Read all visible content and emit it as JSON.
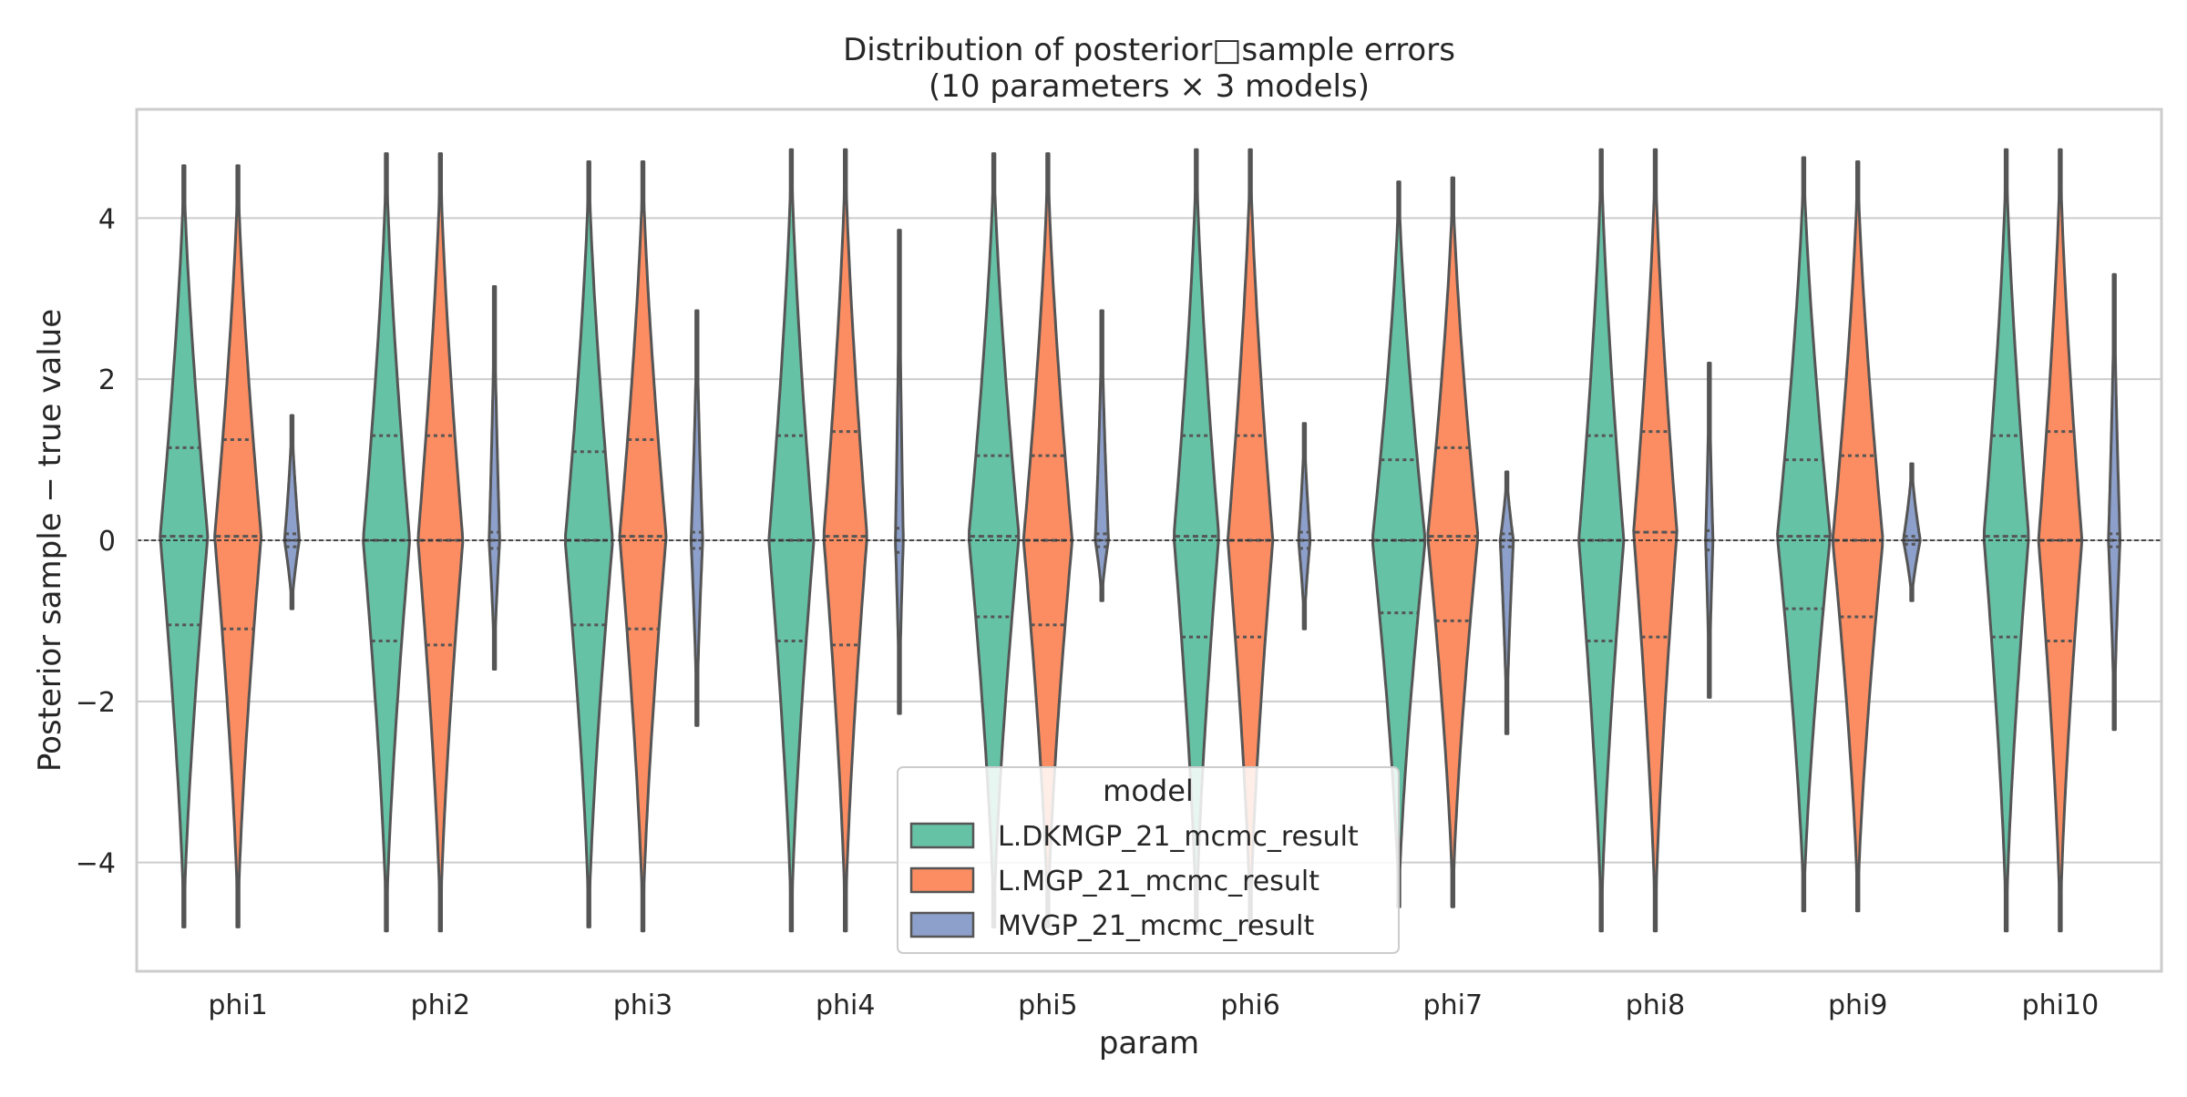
{
  "chart_data": {
    "type": "violin",
    "title_line1": "Distribution of posterior□sample errors",
    "title_line2": "(10 parameters × 3 models)",
    "xlabel": "param",
    "ylabel": "Posterior sample − true value",
    "ylim": [
      -5.35,
      5.35
    ],
    "yticks": [
      -4,
      -2,
      0,
      2,
      4
    ],
    "ytick_labels": [
      "−4",
      "−2",
      "0",
      "2",
      "4"
    ],
    "grid": "horizontal",
    "reference_line_y": 0,
    "categories": [
      "phi1",
      "phi2",
      "phi3",
      "phi4",
      "phi5",
      "phi6",
      "phi7",
      "phi8",
      "phi9",
      "phi10"
    ],
    "legend": {
      "title": "model",
      "placement": "lower center"
    },
    "series": [
      {
        "name": "L.DKMGP_21_mcmc_result",
        "color": "#66c2a5",
        "stats": [
          {
            "min": -4.8,
            "max": 4.65,
            "q1": -1.05,
            "median": 0.05,
            "q3": 1.15,
            "maxwidth": 0.9
          },
          {
            "min": -4.85,
            "max": 4.8,
            "q1": -1.25,
            "median": 0.0,
            "q3": 1.3,
            "maxwidth": 0.88
          },
          {
            "min": -4.8,
            "max": 4.7,
            "q1": -1.05,
            "median": 0.0,
            "q3": 1.1,
            "maxwidth": 0.9
          },
          {
            "min": -4.85,
            "max": 4.85,
            "q1": -1.25,
            "median": 0.0,
            "q3": 1.3,
            "maxwidth": 0.85
          },
          {
            "min": -4.8,
            "max": 4.8,
            "q1": -0.95,
            "median": 0.05,
            "q3": 1.05,
            "maxwidth": 0.95
          },
          {
            "min": -4.85,
            "max": 4.85,
            "q1": -1.2,
            "median": 0.05,
            "q3": 1.3,
            "maxwidth": 0.85
          },
          {
            "min": -4.55,
            "max": 4.45,
            "q1": -0.9,
            "median": 0.0,
            "q3": 1.0,
            "maxwidth": 1.0
          },
          {
            "min": -4.85,
            "max": 4.85,
            "q1": -1.25,
            "median": 0.0,
            "q3": 1.3,
            "maxwidth": 0.85
          },
          {
            "min": -4.6,
            "max": 4.75,
            "q1": -0.85,
            "median": 0.05,
            "q3": 1.0,
            "maxwidth": 1.0
          },
          {
            "min": -4.85,
            "max": 4.85,
            "q1": -1.2,
            "median": 0.05,
            "q3": 1.3,
            "maxwidth": 0.85
          }
        ]
      },
      {
        "name": "L.MGP_21_mcmc_result",
        "color": "#fc8d62",
        "stats": [
          {
            "min": -4.8,
            "max": 4.65,
            "q1": -1.1,
            "median": 0.05,
            "q3": 1.25,
            "maxwidth": 0.88
          },
          {
            "min": -4.85,
            "max": 4.8,
            "q1": -1.3,
            "median": 0.0,
            "q3": 1.3,
            "maxwidth": 0.85
          },
          {
            "min": -4.85,
            "max": 4.7,
            "q1": -1.1,
            "median": 0.05,
            "q3": 1.25,
            "maxwidth": 0.88
          },
          {
            "min": -4.85,
            "max": 4.85,
            "q1": -1.3,
            "median": 0.05,
            "q3": 1.35,
            "maxwidth": 0.82
          },
          {
            "min": -4.8,
            "max": 4.8,
            "q1": -1.05,
            "median": 0.0,
            "q3": 1.05,
            "maxwidth": 0.92
          },
          {
            "min": -4.85,
            "max": 4.85,
            "q1": -1.2,
            "median": 0.0,
            "q3": 1.3,
            "maxwidth": 0.85
          },
          {
            "min": -4.55,
            "max": 4.5,
            "q1": -1.0,
            "median": 0.05,
            "q3": 1.15,
            "maxwidth": 0.95
          },
          {
            "min": -4.85,
            "max": 4.85,
            "q1": -1.2,
            "median": 0.1,
            "q3": 1.35,
            "maxwidth": 0.82
          },
          {
            "min": -4.6,
            "max": 4.7,
            "q1": -0.95,
            "median": 0.0,
            "q3": 1.05,
            "maxwidth": 0.95
          },
          {
            "min": -4.85,
            "max": 4.85,
            "q1": -1.25,
            "median": 0.0,
            "q3": 1.35,
            "maxwidth": 0.82
          }
        ]
      },
      {
        "name": "MVGP_21_mcmc_result",
        "color": "#8da0cb",
        "stats": [
          {
            "min": -0.85,
            "max": 1.55,
            "q1": -0.08,
            "median": 0.0,
            "q3": 0.08,
            "maxwidth": 0.28
          },
          {
            "min": -1.6,
            "max": 3.15,
            "q1": -0.1,
            "median": 0.0,
            "q3": 0.1,
            "maxwidth": 0.2
          },
          {
            "min": -2.3,
            "max": 2.85,
            "q1": -0.1,
            "median": 0.0,
            "q3": 0.1,
            "maxwidth": 0.22
          },
          {
            "min": -2.15,
            "max": 3.85,
            "q1": -0.15,
            "median": 0.0,
            "q3": 0.15,
            "maxwidth": 0.15
          },
          {
            "min": -0.75,
            "max": 2.85,
            "q1": -0.08,
            "median": 0.0,
            "q3": 0.08,
            "maxwidth": 0.25
          },
          {
            "min": -1.1,
            "max": 1.45,
            "q1": -0.1,
            "median": 0.0,
            "q3": 0.1,
            "maxwidth": 0.22
          },
          {
            "min": -2.4,
            "max": 0.85,
            "q1": -0.08,
            "median": 0.0,
            "q3": 0.08,
            "maxwidth": 0.25
          },
          {
            "min": -1.95,
            "max": 2.2,
            "q1": -0.12,
            "median": 0.0,
            "q3": 0.12,
            "maxwidth": 0.14
          },
          {
            "min": -0.75,
            "max": 0.95,
            "q1": -0.05,
            "median": 0.0,
            "q3": 0.05,
            "maxwidth": 0.32
          },
          {
            "min": -2.35,
            "max": 3.3,
            "q1": -0.08,
            "median": 0.0,
            "q3": 0.08,
            "maxwidth": 0.22
          }
        ]
      }
    ]
  }
}
